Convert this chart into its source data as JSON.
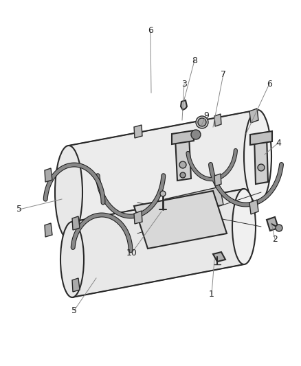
{
  "bg_color": "#ffffff",
  "line_color": "#2a2a2a",
  "fill_light": "#e8e8e8",
  "fill_mid": "#c8c8c8",
  "fill_dark": "#a0a0a0",
  "callout_color": "#888888",
  "label_color": "#222222",
  "fig_width": 4.38,
  "fig_height": 5.33,
  "dpi": 100,
  "callouts": {
    "6a": {
      "lpos": [
        219,
        52
      ],
      "epos": [
        219,
        52
      ]
    },
    "8": {
      "lpos": [
        282,
        95
      ],
      "epos": [
        282,
        95
      ]
    },
    "3": {
      "lpos": [
        266,
        130
      ],
      "epos": [
        266,
        130
      ]
    },
    "7": {
      "lpos": [
        323,
        115
      ],
      "epos": [
        323,
        115
      ]
    },
    "6b": {
      "lpos": [
        390,
        130
      ],
      "epos": [
        390,
        130
      ]
    },
    "9": {
      "lpos": [
        300,
        175
      ],
      "epos": [
        300,
        175
      ]
    },
    "4": {
      "lpos": [
        403,
        215
      ],
      "epos": [
        403,
        215
      ]
    },
    "2": {
      "lpos": [
        397,
        355
      ],
      "epos": [
        397,
        355
      ]
    },
    "1": {
      "lpos": [
        307,
        430
      ],
      "epos": [
        307,
        430
      ]
    },
    "10": {
      "lpos": [
        190,
        370
      ],
      "epos": [
        190,
        370
      ]
    },
    "5a": {
      "lpos": [
        28,
        310
      ],
      "epos": [
        28,
        310
      ]
    },
    "5b": {
      "lpos": [
        105,
        455
      ],
      "epos": [
        105,
        455
      ]
    }
  }
}
